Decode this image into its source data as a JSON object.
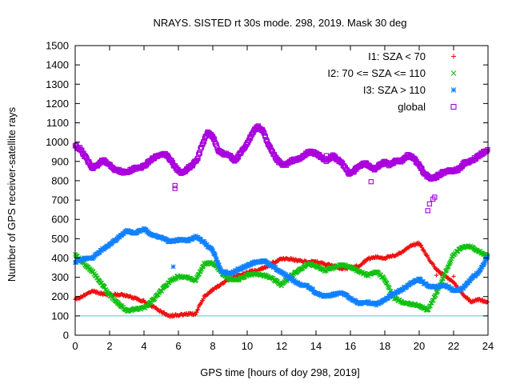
{
  "chart_data": {
    "type": "scatter",
    "title": "NRAYS. SISTED rt 30s mode. 298, 2019. Mask 30 deg",
    "xlabel": "GPS time [hours of doy 298, 2019]",
    "ylabel": "Number of GPS receiver-satellite rays",
    "xlim": [
      0,
      24
    ],
    "ylim": [
      0,
      1500
    ],
    "x_ticks": [
      "0",
      "2",
      "4",
      "6",
      "8",
      "10",
      "12",
      "14",
      "16",
      "18",
      "20",
      "22",
      "24"
    ],
    "y_ticks": [
      "0",
      "100",
      "200",
      "300",
      "400",
      "500",
      "600",
      "700",
      "800",
      "900",
      "1000",
      "1100",
      "1200",
      "1300",
      "1400",
      "1500"
    ],
    "reference_line": {
      "y": 100,
      "color": "#40d0d0"
    },
    "legend_position": "top-right",
    "series": [
      {
        "name": "I1: SZA < 70",
        "marker": "+",
        "color": "#ee1111",
        "points": [
          [
            0,
            185
          ],
          [
            0.5,
            205
          ],
          [
            1,
            230
          ],
          [
            1.5,
            215
          ],
          [
            2,
            210
          ],
          [
            2.5,
            210
          ],
          [
            3,
            205
          ],
          [
            3.5,
            190
          ],
          [
            4,
            175
          ],
          [
            4.5,
            150
          ],
          [
            5,
            120
          ],
          [
            5.5,
            100
          ],
          [
            6,
            105
          ],
          [
            6.5,
            110
          ],
          [
            7,
            110
          ],
          [
            7.5,
            200
          ],
          [
            8,
            235
          ],
          [
            8.5,
            265
          ],
          [
            9,
            290
          ],
          [
            9.5,
            310
          ],
          [
            10,
            325
          ],
          [
            10.5,
            335
          ],
          [
            11,
            350
          ],
          [
            11.5,
            375
          ],
          [
            12,
            395
          ],
          [
            12.5,
            395
          ],
          [
            13,
            385
          ],
          [
            13.5,
            380
          ],
          [
            14,
            380
          ],
          [
            14.5,
            370
          ],
          [
            15,
            360
          ],
          [
            15.5,
            345
          ],
          [
            16,
            350
          ],
          [
            16.5,
            360
          ],
          [
            17,
            395
          ],
          [
            17.5,
            405
          ],
          [
            18,
            400
          ],
          [
            18.5,
            410
          ],
          [
            19,
            430
          ],
          [
            19.5,
            465
          ],
          [
            20,
            475
          ],
          [
            20.5,
            405
          ],
          [
            21,
            340
          ],
          [
            21.5,
            305
          ],
          [
            22,
            275
          ],
          [
            22.5,
            215
          ],
          [
            23,
            175
          ],
          [
            23.5,
            185
          ],
          [
            24,
            170
          ]
        ]
      },
      {
        "name": "I2: 70 <= SZA <= 110",
        "marker": "x",
        "color": "#10c010",
        "points": [
          [
            0,
            420
          ],
          [
            0.5,
            370
          ],
          [
            1,
            330
          ],
          [
            1.5,
            270
          ],
          [
            2,
            210
          ],
          [
            2.5,
            165
          ],
          [
            3,
            125
          ],
          [
            3.5,
            135
          ],
          [
            4,
            140
          ],
          [
            4.5,
            180
          ],
          [
            5,
            230
          ],
          [
            5.5,
            280
          ],
          [
            6,
            305
          ],
          [
            6.5,
            300
          ],
          [
            7,
            285
          ],
          [
            7.5,
            370
          ],
          [
            8,
            375
          ],
          [
            8.5,
            325
          ],
          [
            9,
            285
          ],
          [
            9.5,
            290
          ],
          [
            10,
            310
          ],
          [
            10.5,
            320
          ],
          [
            11,
            310
          ],
          [
            11.5,
            290
          ],
          [
            12,
            260
          ],
          [
            12.5,
            305
          ],
          [
            13,
            335
          ],
          [
            13.5,
            370
          ],
          [
            14,
            360
          ],
          [
            14.5,
            335
          ],
          [
            15,
            350
          ],
          [
            15.5,
            365
          ],
          [
            16,
            355
          ],
          [
            16.5,
            330
          ],
          [
            17,
            310
          ],
          [
            17.5,
            330
          ],
          [
            18,
            290
          ],
          [
            18.5,
            195
          ],
          [
            19,
            170
          ],
          [
            19.5,
            160
          ],
          [
            20,
            155
          ],
          [
            20.5,
            130
          ],
          [
            21,
            215
          ],
          [
            21.5,
            320
          ],
          [
            22,
            420
          ],
          [
            22.5,
            455
          ],
          [
            23,
            460
          ],
          [
            23.5,
            435
          ],
          [
            24,
            410
          ]
        ]
      },
      {
        "name": "I3: SZA > 110",
        "marker": "*",
        "color": "#1080ff",
        "points": [
          [
            0,
            380
          ],
          [
            0.5,
            395
          ],
          [
            1,
            400
          ],
          [
            1.5,
            440
          ],
          [
            2,
            470
          ],
          [
            2.5,
            505
          ],
          [
            3,
            540
          ],
          [
            3.5,
            530
          ],
          [
            4,
            550
          ],
          [
            4.5,
            520
          ],
          [
            5,
            505
          ],
          [
            5.5,
            485
          ],
          [
            6,
            495
          ],
          [
            6.5,
            490
          ],
          [
            7,
            510
          ],
          [
            7.5,
            480
          ],
          [
            8,
            440
          ],
          [
            8.5,
            330
          ],
          [
            9,
            320
          ],
          [
            9.5,
            340
          ],
          [
            10,
            360
          ],
          [
            10.5,
            380
          ],
          [
            11,
            385
          ],
          [
            11.5,
            355
          ],
          [
            12,
            325
          ],
          [
            12.5,
            295
          ],
          [
            13,
            265
          ],
          [
            13.5,
            255
          ],
          [
            14,
            220
          ],
          [
            14.5,
            200
          ],
          [
            15,
            210
          ],
          [
            15.5,
            220
          ],
          [
            16,
            190
          ],
          [
            16.5,
            165
          ],
          [
            17,
            170
          ],
          [
            17.5,
            160
          ],
          [
            18,
            185
          ],
          [
            18.5,
            215
          ],
          [
            19,
            235
          ],
          [
            19.5,
            270
          ],
          [
            20,
            290
          ],
          [
            20.5,
            255
          ],
          [
            21,
            250
          ],
          [
            21.5,
            260
          ],
          [
            22,
            230
          ],
          [
            22.5,
            240
          ],
          [
            23,
            290
          ],
          [
            23.5,
            330
          ],
          [
            24,
            410
          ]
        ]
      },
      {
        "name": "global",
        "marker": "square",
        "color": "#aa00dd",
        "points": [
          [
            0,
            980
          ],
          [
            0.3,
            965
          ],
          [
            0.6,
            920
          ],
          [
            1,
            865
          ],
          [
            1.3,
            880
          ],
          [
            1.6,
            910
          ],
          [
            2,
            885
          ],
          [
            2.3,
            860
          ],
          [
            2.6,
            850
          ],
          [
            3,
            840
          ],
          [
            3.3,
            860
          ],
          [
            3.6,
            865
          ],
          [
            4,
            875
          ],
          [
            4.3,
            900
          ],
          [
            4.6,
            920
          ],
          [
            5,
            935
          ],
          [
            5.3,
            935
          ],
          [
            5.6,
            900
          ],
          [
            5.9,
            860
          ],
          [
            6.2,
            840
          ],
          [
            6.5,
            860
          ],
          [
            6.8,
            880
          ],
          [
            7.1,
            910
          ],
          [
            7.4,
            990
          ],
          [
            7.7,
            1050
          ],
          [
            8,
            1030
          ],
          [
            8.3,
            960
          ],
          [
            8.6,
            940
          ],
          [
            9,
            930
          ],
          [
            9.3,
            905
          ],
          [
            9.6,
            940
          ],
          [
            10,
            990
          ],
          [
            10.3,
            1050
          ],
          [
            10.6,
            1080
          ],
          [
            10.9,
            1060
          ],
          [
            11.2,
            990
          ],
          [
            11.5,
            940
          ],
          [
            11.8,
            900
          ],
          [
            12.1,
            880
          ],
          [
            12.4,
            890
          ],
          [
            12.7,
            910
          ],
          [
            13,
            910
          ],
          [
            13.3,
            930
          ],
          [
            13.6,
            950
          ],
          [
            14,
            940
          ],
          [
            14.3,
            925
          ],
          [
            14.6,
            900
          ],
          [
            15,
            930
          ],
          [
            15.3,
            905
          ],
          [
            15.6,
            880
          ],
          [
            15.9,
            840
          ],
          [
            16.2,
            850
          ],
          [
            16.5,
            875
          ],
          [
            16.8,
            890
          ],
          [
            17.1,
            880
          ],
          [
            17.4,
            860
          ],
          [
            17.7,
            880
          ],
          [
            18,
            895
          ],
          [
            18.3,
            880
          ],
          [
            18.6,
            900
          ],
          [
            19,
            905
          ],
          [
            19.3,
            930
          ],
          [
            19.6,
            925
          ],
          [
            20,
            880
          ],
          [
            20.3,
            840
          ],
          [
            20.6,
            810
          ],
          [
            21,
            820
          ],
          [
            21.3,
            840
          ],
          [
            21.6,
            850
          ],
          [
            22,
            850
          ],
          [
            22.3,
            860
          ],
          [
            22.6,
            890
          ],
          [
            23,
            900
          ],
          [
            23.3,
            920
          ],
          [
            23.6,
            940
          ],
          [
            24,
            960
          ]
        ]
      }
    ],
    "outliers": {
      "I1: SZA < 70": [
        [
          21,
          310
        ],
        [
          22,
          305
        ]
      ],
      "I3: SZA > 110": [
        [
          5.7,
          355
        ]
      ],
      "global": [
        [
          5.8,
          760
        ],
        [
          5.8,
          775
        ],
        [
          20.5,
          645
        ],
        [
          20.6,
          680
        ],
        [
          20.8,
          705
        ],
        [
          20.9,
          715
        ],
        [
          17.2,
          795
        ],
        [
          14.6,
          930
        ]
      ]
    }
  }
}
